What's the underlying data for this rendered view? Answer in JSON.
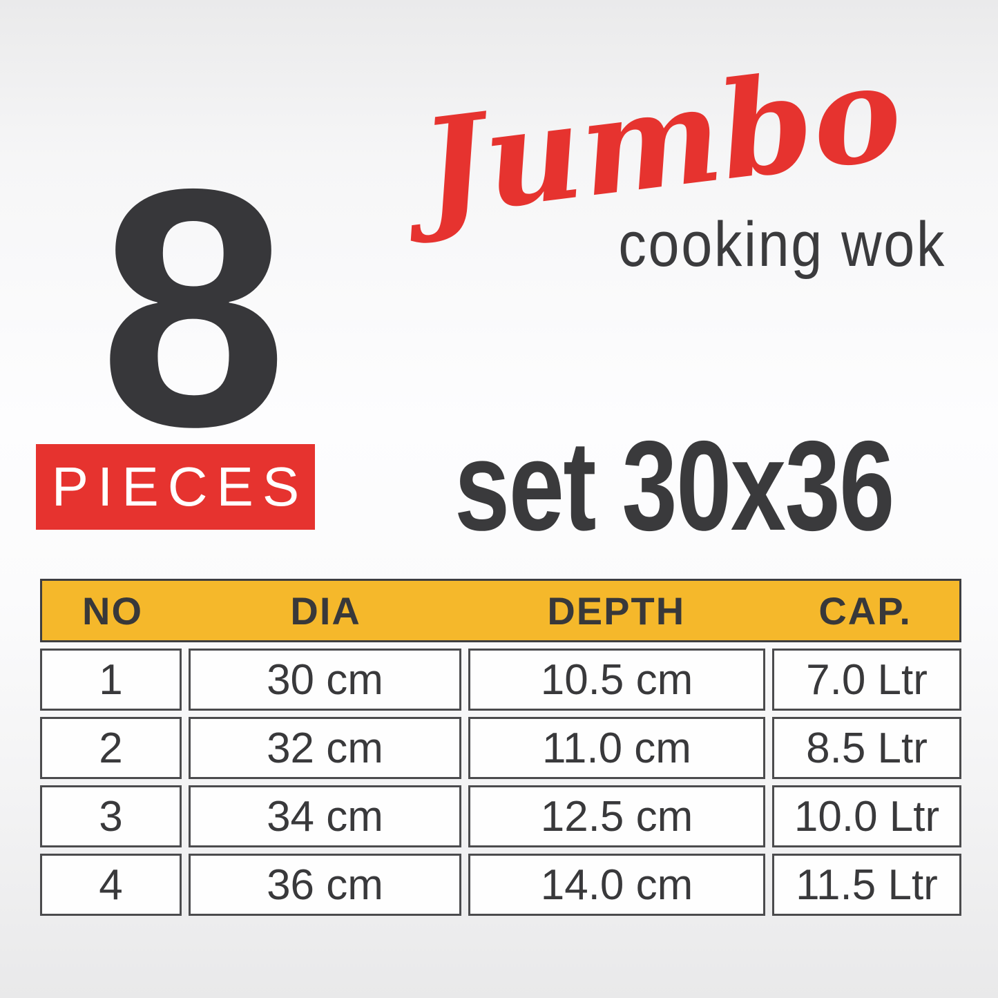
{
  "badge": {
    "count": "8",
    "label": "PIECES"
  },
  "brand": {
    "script": "Jumbo",
    "subtitle": "cooking wok"
  },
  "set_title": "set 30x36",
  "colors": {
    "red": "#e6332f",
    "yellow": "#f5b82b",
    "charcoal": "#3a3a3c"
  },
  "table": {
    "headers": [
      "NO",
      "DIA",
      "DEPTH",
      "CAP."
    ],
    "rows": [
      [
        "1",
        "30 cm",
        "10.5 cm",
        "7.0 Ltr"
      ],
      [
        "2",
        "32 cm",
        "11.0 cm",
        "8.5 Ltr"
      ],
      [
        "3",
        "34 cm",
        "12.5 cm",
        "10.0 Ltr"
      ],
      [
        "4",
        "36 cm",
        "14.0 cm",
        "11.5 Ltr"
      ]
    ]
  }
}
